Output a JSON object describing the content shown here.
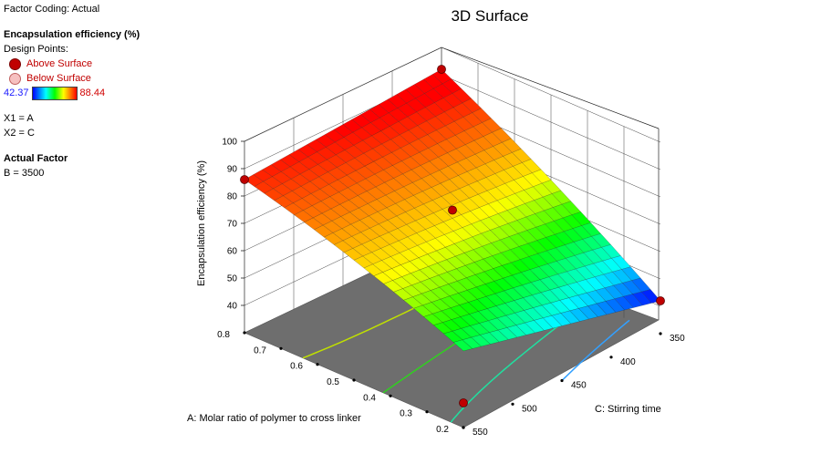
{
  "legend": {
    "factor_coding": "Factor Coding: Actual",
    "response_title": "Encapsulation efficiency (%)",
    "design_points_label": "Design Points:",
    "above_label": "Above Surface",
    "below_label": "Below Surface",
    "color_min": "42.37",
    "color_max": "88.44",
    "x1": "X1 = A",
    "x2": "X2 = C",
    "actual_factor_title": "Actual Factor",
    "actual_factor_value": "B = 3500"
  },
  "colors": {
    "above_point": "#c00000",
    "floor": "#6e6e6e",
    "scale": [
      "#0000ff",
      "#00ffff",
      "#00ff00",
      "#ffff00",
      "#ff8000",
      "#ff0000"
    ]
  },
  "chart_data": {
    "type": "surface",
    "title": "3D Surface",
    "xlabel": "A: Molar ratio of polymer to cross linker",
    "ylabel": "C: Stirring time",
    "zlabel": "Encapsulation efficiency (%)",
    "x_ticks": [
      "0.2",
      "0.3",
      "0.4",
      "0.5",
      "0.6",
      "0.7",
      "0.8"
    ],
    "y_ticks": [
      "350",
      "400",
      "450",
      "500",
      "550"
    ],
    "z_ticks": [
      "40",
      "50",
      "60",
      "70",
      "80",
      "90",
      "100"
    ],
    "xlim": [
      0.2,
      0.8
    ],
    "ylim": [
      350,
      550
    ],
    "zlim": [
      30,
      100
    ],
    "corner_values": [
      {
        "A": 0.8,
        "C": 550,
        "z": 86
      },
      {
        "A": 0.8,
        "C": 350,
        "z": 92
      },
      {
        "A": 0.2,
        "C": 350,
        "z": 42
      },
      {
        "A": 0.2,
        "C": 550,
        "z": 58
      }
    ],
    "center_value": {
      "A": 0.5,
      "C": 450,
      "z": 72
    },
    "design_points": [
      {
        "A": 0.8,
        "C": 550,
        "z": 86,
        "position": "above"
      },
      {
        "A": 0.8,
        "C": 350,
        "z": 92,
        "position": "above"
      },
      {
        "A": 0.2,
        "C": 350,
        "z": 42,
        "position": "above"
      },
      {
        "A": 0.2,
        "C": 550,
        "z": 39,
        "position": "above"
      },
      {
        "A": 0.5,
        "C": 450,
        "z": 75,
        "position": "above"
      }
    ],
    "contour_levels": [
      50,
      60,
      70,
      80
    ],
    "grid": true
  }
}
